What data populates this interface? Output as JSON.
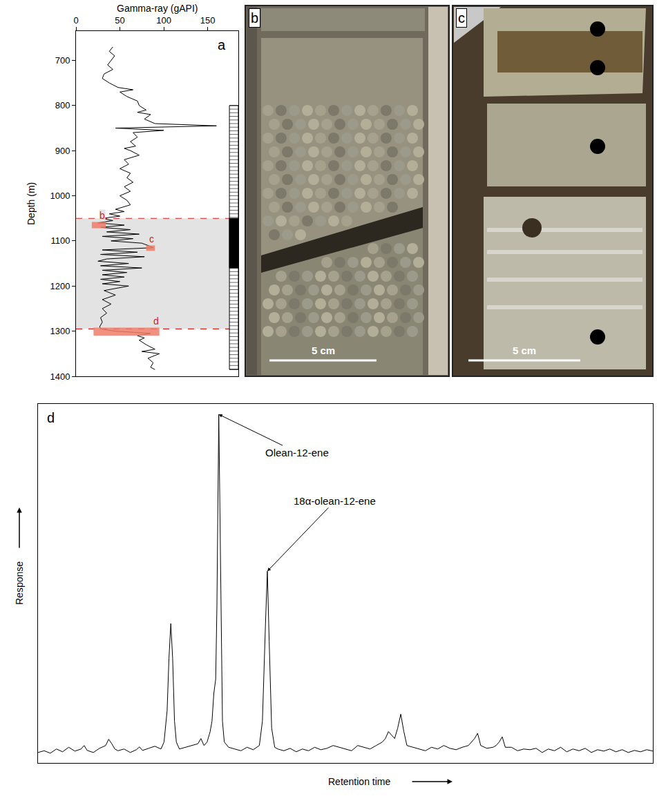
{
  "chart_data": [
    {
      "panel": "a",
      "type": "line",
      "x_label": "Gamma-ray (gAPI)",
      "y_label": "Depth (m)",
      "color": "#000000",
      "grid": false,
      "xlim": [
        0,
        185
      ],
      "xticks": [
        0,
        50,
        100,
        150
      ],
      "ylim": [
        1400,
        635
      ],
      "yticks": [
        700,
        800,
        900,
        1000,
        1100,
        1200,
        1300,
        1400
      ],
      "x": [
        42,
        38,
        44,
        40,
        36,
        42,
        32,
        30,
        38,
        48,
        65,
        50,
        58,
        70,
        72,
        80,
        70,
        85,
        78,
        90,
        160,
        45,
        100,
        65,
        70,
        62,
        68,
        55,
        62,
        72,
        55,
        60,
        50,
        62,
        58,
        65,
        55,
        62,
        50,
        58,
        62,
        45,
        55,
        38,
        50,
        30,
        42,
        25,
        55,
        28,
        62,
        35,
        72,
        30,
        65,
        40,
        75,
        82,
        88,
        30,
        70,
        28,
        78,
        35,
        25,
        60,
        28,
        75,
        30,
        58,
        30,
        55,
        28,
        50,
        30,
        60,
        32,
        45,
        30,
        40,
        30,
        35,
        28,
        30,
        27,
        28,
        45,
        85,
        70,
        78,
        72,
        80,
        90,
        75,
        95,
        82,
        88,
        85,
        90
      ],
      "y": [
        670,
        680,
        690,
        700,
        710,
        720,
        730,
        740,
        750,
        760,
        765,
        770,
        780,
        790,
        800,
        810,
        815,
        820,
        830,
        840,
        845,
        850,
        855,
        860,
        870,
        880,
        890,
        895,
        900,
        910,
        920,
        930,
        940,
        950,
        960,
        970,
        980,
        990,
        1000,
        1010,
        1020,
        1030,
        1035,
        1040,
        1045,
        1050,
        1055,
        1060,
        1065,
        1070,
        1075,
        1080,
        1085,
        1090,
        1095,
        1100,
        1105,
        1110,
        1115,
        1120,
        1125,
        1130,
        1135,
        1140,
        1145,
        1150,
        1155,
        1160,
        1165,
        1170,
        1175,
        1180,
        1185,
        1190,
        1195,
        1200,
        1210,
        1220,
        1230,
        1240,
        1250,
        1260,
        1270,
        1280,
        1290,
        1295,
        1300,
        1305,
        1310,
        1315,
        1320,
        1330,
        1340,
        1345,
        1350,
        1360,
        1370,
        1380,
        1385
      ],
      "shaded_interval": [
        1050,
        1295
      ],
      "core_interval": [
        800,
        1385
      ],
      "cored_solid_interval": [
        1050,
        1160
      ],
      "sample_boxes": [
        {
          "label": "b",
          "depth": [
            1058,
            1072
          ],
          "x": [
            18,
            34
          ]
        },
        {
          "label": "c",
          "depth": [
            1110,
            1122
          ],
          "x": [
            80,
            90
          ]
        },
        {
          "label": "d",
          "depth": [
            1292,
            1310
          ],
          "x": [
            20,
            95
          ]
        }
      ]
    },
    {
      "panel": "d",
      "type": "line",
      "x_label": "Retention time",
      "y_label": "Response",
      "color": "#000000",
      "grid": false,
      "tick_labels": false,
      "xlim": [
        0,
        100
      ],
      "ylim": [
        0,
        1.03
      ],
      "x": [
        0,
        1,
        2,
        3,
        4,
        5,
        6,
        7,
        7.5,
        8,
        9,
        10,
        11,
        11.5,
        12,
        12.5,
        13,
        14,
        15,
        16,
        16.5,
        17,
        18,
        19,
        20,
        20.5,
        21,
        21.3,
        21.6,
        21.9,
        22.2,
        22.5,
        23,
        24,
        25,
        26,
        26.5,
        27,
        27.5,
        28,
        28.3,
        28.6,
        28.9,
        29.1,
        29.4,
        29.7,
        30,
        30.3,
        30.7,
        31,
        32,
        33,
        34,
        35,
        36,
        36.5,
        37,
        37.3,
        37.6,
        38,
        38.5,
        39,
        40,
        41,
        42,
        43,
        44,
        45,
        46,
        47,
        48,
        49,
        50,
        51,
        52,
        53,
        54,
        55,
        56,
        56.5,
        57,
        57.5,
        58,
        58.5,
        59,
        59.5,
        60,
        61,
        62,
        63,
        64,
        65,
        66,
        67,
        68,
        69,
        70,
        71,
        71.5,
        72,
        73,
        74,
        74.5,
        75,
        75.5,
        76,
        77,
        78,
        79,
        80,
        81,
        82,
        83,
        84,
        85,
        86,
        87,
        88,
        89,
        90,
        91,
        92,
        93,
        94,
        95,
        96,
        97,
        98,
        99,
        100
      ],
      "values": [
        0.03,
        0.035,
        0.028,
        0.04,
        0.032,
        0.045,
        0.034,
        0.04,
        0.05,
        0.036,
        0.03,
        0.042,
        0.05,
        0.068,
        0.055,
        0.04,
        0.035,
        0.04,
        0.03,
        0.038,
        0.046,
        0.036,
        0.042,
        0.048,
        0.04,
        0.06,
        0.15,
        0.3,
        0.4,
        0.3,
        0.12,
        0.06,
        0.04,
        0.045,
        0.05,
        0.055,
        0.07,
        0.05,
        0.06,
        0.09,
        0.12,
        0.2,
        0.24,
        0.45,
        1.0,
        0.55,
        0.12,
        0.06,
        0.05,
        0.045,
        0.04,
        0.035,
        0.045,
        0.038,
        0.05,
        0.12,
        0.4,
        0.55,
        0.35,
        0.1,
        0.045,
        0.04,
        0.035,
        0.042,
        0.032,
        0.04,
        0.035,
        0.045,
        0.038,
        0.042,
        0.05,
        0.045,
        0.04,
        0.035,
        0.05,
        0.045,
        0.04,
        0.05,
        0.06,
        0.07,
        0.09,
        0.08,
        0.07,
        0.1,
        0.14,
        0.09,
        0.05,
        0.045,
        0.04,
        0.035,
        0.045,
        0.04,
        0.05,
        0.042,
        0.038,
        0.045,
        0.05,
        0.07,
        0.085,
        0.05,
        0.042,
        0.045,
        0.05,
        0.06,
        0.075,
        0.045,
        0.045,
        0.035,
        0.04,
        0.038,
        0.042,
        0.03,
        0.04,
        0.035,
        0.045,
        0.032,
        0.04,
        0.035,
        0.042,
        0.03,
        0.038,
        0.034,
        0.04,
        0.032,
        0.038,
        0.03,
        0.036,
        0.032,
        0.038,
        0.034
      ],
      "annotations": [
        {
          "text": "Olean-12-ene",
          "x": 29.4,
          "y": 1.0
        },
        {
          "text": "18α-olean-12-ene",
          "x": 37.3,
          "y": 0.55
        }
      ]
    }
  ],
  "photos": [
    {
      "panel": "b",
      "scale_bar": "5 cm"
    },
    {
      "panel": "c",
      "scale_bar": "5 cm"
    }
  ]
}
